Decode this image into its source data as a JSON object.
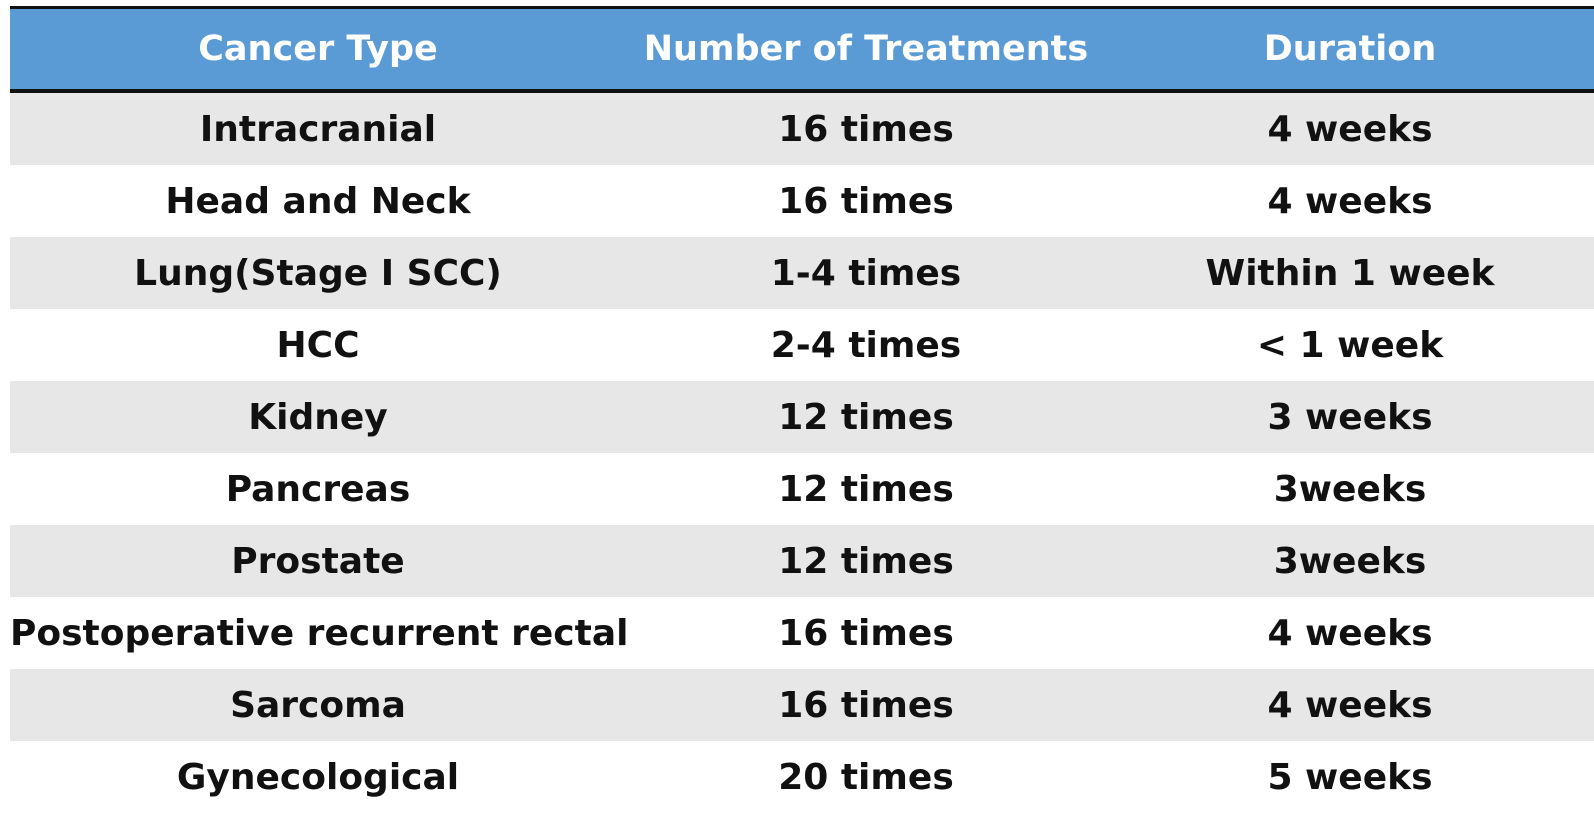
{
  "table": {
    "header": [
      "Cancer Type",
      "Number of Treatments",
      "Duration"
    ],
    "rows": [
      [
        "Intracranial",
        "16 times",
        "4 weeks"
      ],
      [
        "Head and Neck",
        "16 times",
        "4 weeks"
      ],
      [
        "Lung(Stage I SCC)",
        "1-4 times",
        "Within 1 week"
      ],
      [
        "HCC",
        "2-4 times",
        "< 1 week"
      ],
      [
        "Kidney",
        "12 times",
        "3 weeks"
      ],
      [
        "Pancreas",
        "12 times",
        "3weeks"
      ],
      [
        "Prostate",
        "12 times",
        "3weeks"
      ],
      [
        "Postoperative recurrent rectal",
        "16 times",
        "4 weeks"
      ],
      [
        "Sarcoma",
        "16 times",
        "4 weeks"
      ],
      [
        "Gynecological",
        "20 times",
        "5 weeks"
      ]
    ]
  }
}
